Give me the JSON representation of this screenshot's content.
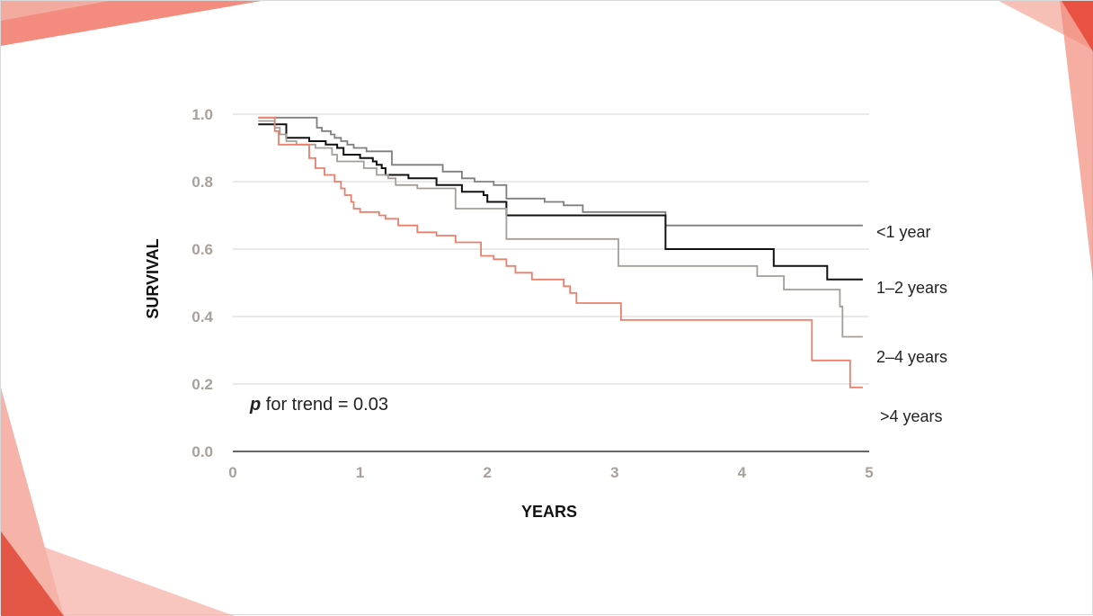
{
  "colors": {
    "accent": "#e8503a",
    "accent_light": "#f4a090",
    "grid": "#d4d4d4",
    "tick": "#a8a09a"
  },
  "chart_data": {
    "type": "line",
    "subtype": "kaplan-meier step",
    "title": "",
    "xlabel": "YEARS",
    "ylabel": "SURVIVAL",
    "xlim": [
      0,
      5
    ],
    "ylim": [
      0,
      1.0
    ],
    "x_ticks": [
      "0",
      "1",
      "2",
      "3",
      "4",
      "5"
    ],
    "y_ticks": [
      "0.0",
      "0.2",
      "0.4",
      "0.6",
      "0.8",
      "1.0"
    ],
    "grid": true,
    "annotation": {
      "italic": "p",
      "text": " for trend = 0.03"
    },
    "series": [
      {
        "name": "<1 year",
        "color": "#7f7f7f",
        "points": [
          [
            0.2,
            0.99
          ],
          [
            0.66,
            0.99
          ],
          [
            0.66,
            0.96
          ],
          [
            0.7,
            0.95
          ],
          [
            0.77,
            0.94
          ],
          [
            0.8,
            0.93
          ],
          [
            0.85,
            0.92
          ],
          [
            0.9,
            0.91
          ],
          [
            0.95,
            0.9
          ],
          [
            1.05,
            0.89
          ],
          [
            1.25,
            0.88
          ],
          [
            1.25,
            0.85
          ],
          [
            1.65,
            0.84
          ],
          [
            1.65,
            0.83
          ],
          [
            1.8,
            0.81
          ],
          [
            1.9,
            0.8
          ],
          [
            1.97,
            0.8
          ],
          [
            2.05,
            0.79
          ],
          [
            2.15,
            0.77
          ],
          [
            2.15,
            0.75
          ],
          [
            2.45,
            0.74
          ],
          [
            2.6,
            0.73
          ],
          [
            2.75,
            0.71
          ],
          [
            3.4,
            0.71
          ],
          [
            3.4,
            0.67
          ],
          [
            4.95,
            0.67
          ]
        ]
      },
      {
        "name": "1–2 years",
        "color": "#111111",
        "points": [
          [
            0.2,
            0.97
          ],
          [
            0.42,
            0.97
          ],
          [
            0.42,
            0.93
          ],
          [
            0.6,
            0.93
          ],
          [
            0.6,
            0.92
          ],
          [
            0.73,
            0.91
          ],
          [
            0.82,
            0.9
          ],
          [
            0.87,
            0.88
          ],
          [
            1.0,
            0.87
          ],
          [
            1.1,
            0.86
          ],
          [
            1.13,
            0.85
          ],
          [
            1.17,
            0.84
          ],
          [
            1.2,
            0.82
          ],
          [
            1.38,
            0.81
          ],
          [
            1.6,
            0.79
          ],
          [
            1.8,
            0.77
          ],
          [
            1.97,
            0.76
          ],
          [
            2.0,
            0.74
          ],
          [
            2.15,
            0.72
          ],
          [
            2.15,
            0.7
          ],
          [
            3.4,
            0.7
          ],
          [
            3.4,
            0.6
          ],
          [
            4.25,
            0.6
          ],
          [
            4.25,
            0.55
          ],
          [
            4.67,
            0.55
          ],
          [
            4.67,
            0.51
          ],
          [
            4.95,
            0.51
          ]
        ]
      },
      {
        "name": "2–4 years",
        "color": "#a39e99",
        "points": [
          [
            0.2,
            0.98
          ],
          [
            0.33,
            0.98
          ],
          [
            0.33,
            0.96
          ],
          [
            0.37,
            0.94
          ],
          [
            0.42,
            0.92
          ],
          [
            0.5,
            0.91
          ],
          [
            0.65,
            0.9
          ],
          [
            0.78,
            0.88
          ],
          [
            0.82,
            0.86
          ],
          [
            1.0,
            0.86
          ],
          [
            1.03,
            0.84
          ],
          [
            1.13,
            0.82
          ],
          [
            1.22,
            0.81
          ],
          [
            1.28,
            0.79
          ],
          [
            1.45,
            0.78
          ],
          [
            1.75,
            0.77
          ],
          [
            1.75,
            0.72
          ],
          [
            2.15,
            0.72
          ],
          [
            2.15,
            0.63
          ],
          [
            3.03,
            0.63
          ],
          [
            3.03,
            0.55
          ],
          [
            4.12,
            0.55
          ],
          [
            4.12,
            0.52
          ],
          [
            4.33,
            0.52
          ],
          [
            4.33,
            0.48
          ],
          [
            4.77,
            0.48
          ],
          [
            4.77,
            0.43
          ],
          [
            4.79,
            0.43
          ],
          [
            4.79,
            0.34
          ],
          [
            4.95,
            0.34
          ]
        ]
      },
      {
        "name": ">4 years",
        "color": "#e8806c",
        "points": [
          [
            0.2,
            0.99
          ],
          [
            0.33,
            0.99
          ],
          [
            0.33,
            0.95
          ],
          [
            0.36,
            0.91
          ],
          [
            0.43,
            0.91
          ],
          [
            0.6,
            0.91
          ],
          [
            0.6,
            0.87
          ],
          [
            0.65,
            0.84
          ],
          [
            0.72,
            0.82
          ],
          [
            0.8,
            0.8
          ],
          [
            0.85,
            0.78
          ],
          [
            0.88,
            0.76
          ],
          [
            0.93,
            0.74
          ],
          [
            0.95,
            0.72
          ],
          [
            1.0,
            0.71
          ],
          [
            1.15,
            0.7
          ],
          [
            1.2,
            0.69
          ],
          [
            1.3,
            0.67
          ],
          [
            1.45,
            0.65
          ],
          [
            1.6,
            0.64
          ],
          [
            1.75,
            0.62
          ],
          [
            1.95,
            0.58
          ],
          [
            2.05,
            0.57
          ],
          [
            2.15,
            0.55
          ],
          [
            2.22,
            0.53
          ],
          [
            2.35,
            0.51
          ],
          [
            2.6,
            0.49
          ],
          [
            2.65,
            0.47
          ],
          [
            2.7,
            0.44
          ],
          [
            3.05,
            0.42
          ],
          [
            3.05,
            0.39
          ],
          [
            4.55,
            0.39
          ],
          [
            4.55,
            0.27
          ],
          [
            4.85,
            0.27
          ],
          [
            4.85,
            0.19
          ],
          [
            4.95,
            0.19
          ]
        ]
      }
    ],
    "legend": [
      "<1 year",
      "1–2 years",
      "2–4 years",
      ">4 years"
    ]
  }
}
